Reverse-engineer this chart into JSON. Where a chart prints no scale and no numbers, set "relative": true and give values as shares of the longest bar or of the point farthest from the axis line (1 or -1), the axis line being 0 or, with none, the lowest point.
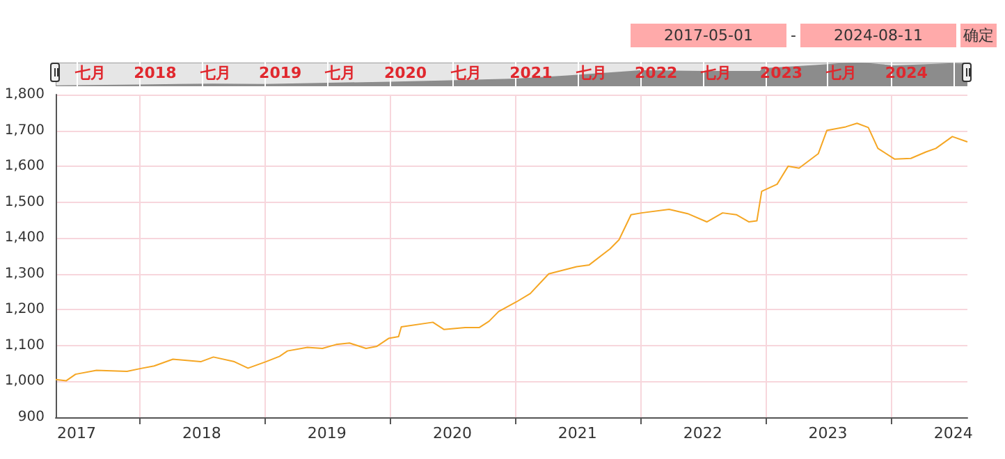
{
  "chart_data": [
    {
      "type": "area",
      "relative": true,
      "color": "#8c8c8c",
      "grid": "x",
      "marker": "none",
      "annotations": [
        "2017-05-01",
        "-",
        "2024-08-11",
        "确定"
      ],
      "x": [
        "2017-05-01",
        "2018-01-01",
        "2018-08-01",
        "2019-01-01",
        "2020-01-01",
        "2020-06-01",
        "2021-01-01",
        "2021-06-01",
        "2022-01-01",
        "2022-07-01",
        "2022-12-15",
        "2022-12-25",
        "2023-06-01",
        "2023-09-20",
        "2024-01-10",
        "2024-06-20",
        "2024-08-11"
      ],
      "values": [
        0.01,
        0.05,
        0.09,
        0.07,
        0.17,
        0.22,
        0.3,
        0.43,
        0.65,
        0.62,
        0.62,
        0.74,
        0.88,
        1,
        0.86,
        0.95,
        0.93
      ],
      "xlim": [
        "2017-05-01",
        "2024-08-11"
      ],
      "xticks": [
        {
          "value": "2017-07-01",
          "label": null
        },
        {
          "value": "2017-08-10",
          "label": "七月"
        },
        {
          "value": "2018-01-01",
          "label": null
        },
        {
          "value": "2018-02-15",
          "label": "2018"
        },
        {
          "value": "2018-07-01",
          "label": null
        },
        {
          "value": "2018-08-10",
          "label": "七月"
        },
        {
          "value": "2019-01-01",
          "label": null
        },
        {
          "value": "2019-02-15",
          "label": "2019"
        },
        {
          "value": "2019-07-01",
          "label": null
        },
        {
          "value": "2019-08-10",
          "label": "七月"
        },
        {
          "value": "2020-01-01",
          "label": null
        },
        {
          "value": "2020-02-15",
          "label": "2020"
        },
        {
          "value": "2020-07-01",
          "label": null
        },
        {
          "value": "2020-08-10",
          "label": "七月"
        },
        {
          "value": "2021-01-01",
          "label": null
        },
        {
          "value": "2021-02-15",
          "label": "2021"
        },
        {
          "value": "2021-07-01",
          "label": null
        },
        {
          "value": "2021-08-10",
          "label": "七月"
        },
        {
          "value": "2022-01-01",
          "label": null
        },
        {
          "value": "2022-02-15",
          "label": "2022"
        },
        {
          "value": "2022-07-01",
          "label": null
        },
        {
          "value": "2022-08-10",
          "label": "七月"
        },
        {
          "value": "2023-01-01",
          "label": null
        },
        {
          "value": "2023-02-15",
          "label": "2023"
        },
        {
          "value": "2023-07-01",
          "label": null
        },
        {
          "value": "2023-08-10",
          "label": "七月"
        },
        {
          "value": "2024-01-01",
          "label": null
        },
        {
          "value": "2024-02-15",
          "label": "2024"
        },
        {
          "value": "2024-07-01",
          "label": null
        }
      ]
    },
    {
      "type": "line",
      "color": "#f5a623",
      "grid": true,
      "marker": "none",
      "x": [
        "2017-05-01",
        "2017-06-01",
        "2017-06-28",
        "2017-08-28",
        "2017-11-25",
        "2018-01-04",
        "2018-02-12",
        "2018-04-08",
        "2018-06-28",
        "2018-08-04",
        "2018-10-04",
        "2018-11-13",
        "2019-01-04",
        "2019-02-13",
        "2019-03-08",
        "2019-05-05",
        "2019-06-18",
        "2019-07-28",
        "2019-09-05",
        "2019-10-23",
        "2019-11-24",
        "2019-12-28",
        "2020-01-26",
        "2020-02-03",
        "2020-05-05",
        "2020-06-06",
        "2020-08-07",
        "2020-09-17",
        "2020-10-16",
        "2020-11-13",
        "2021-01-04",
        "2021-02-13",
        "2021-04-08",
        "2021-06-28",
        "2021-08-04",
        "2021-10-04",
        "2021-10-30",
        "2021-12-04",
        "2022-01-04",
        "2022-03-25",
        "2022-05-18",
        "2022-07-13",
        "2022-08-28",
        "2022-10-07",
        "2022-11-13",
        "2022-12-06",
        "2022-12-20",
        "2023-02-03",
        "2023-03-07",
        "2023-04-08",
        "2023-06-03",
        "2023-06-28",
        "2023-08-22",
        "2023-09-24",
        "2023-10-27",
        "2023-11-24",
        "2024-01-12",
        "2024-02-28",
        "2024-04-12",
        "2024-05-11",
        "2024-06-28",
        "2024-08-11"
      ],
      "values": [
        1005,
        1002,
        1020,
        1031,
        1028,
        1036,
        1043,
        1062,
        1055,
        1068,
        1055,
        1037,
        1055,
        1070,
        1085,
        1095,
        1092,
        1103,
        1107,
        1092,
        1098,
        1120,
        1125,
        1152,
        1165,
        1145,
        1150,
        1150,
        1168,
        1195,
        1222,
        1245,
        1300,
        1320,
        1325,
        1370,
        1395,
        1465,
        1470,
        1480,
        1468,
        1445,
        1470,
        1465,
        1445,
        1448,
        1530,
        1550,
        1600,
        1595,
        1635,
        1700,
        1710,
        1720,
        1708,
        1650,
        1620,
        1622,
        1640,
        1650,
        1683,
        1668
      ],
      "xlim": [
        "2017-05-01",
        "2024-08-11"
      ],
      "xticks": [
        {
          "value": "2017-07-01",
          "label": "2017"
        },
        {
          "value": "2018-01-01",
          "label": null
        },
        {
          "value": "2018-07-01",
          "label": "2018"
        },
        {
          "value": "2019-01-01",
          "label": null
        },
        {
          "value": "2019-07-01",
          "label": "2019"
        },
        {
          "value": "2020-01-01",
          "label": null
        },
        {
          "value": "2020-07-01",
          "label": "2020"
        },
        {
          "value": "2021-01-01",
          "label": null
        },
        {
          "value": "2021-07-01",
          "label": "2021"
        },
        {
          "value": "2022-01-01",
          "label": null
        },
        {
          "value": "2022-07-01",
          "label": "2022"
        },
        {
          "value": "2023-01-01",
          "label": null
        },
        {
          "value": "2023-07-01",
          "label": "2023"
        },
        {
          "value": "2024-01-01",
          "label": null
        },
        {
          "value": "2024-07-01",
          "label": "2024"
        }
      ],
      "ylim": [
        900,
        1800
      ],
      "yticks": [
        900,
        {
          "value": 1000,
          "label": "1,000"
        },
        {
          "value": 1100,
          "label": "1,100"
        },
        {
          "value": 1200,
          "label": "1,200"
        },
        {
          "value": 1300,
          "label": "1,300"
        },
        {
          "value": 1400,
          "label": "1,400"
        },
        {
          "value": 1500,
          "label": "1,500"
        },
        {
          "value": 1600,
          "label": "1,600"
        },
        {
          "value": 1700,
          "label": "1,700"
        },
        {
          "value": 1800,
          "label": "1,800"
        }
      ]
    }
  ]
}
